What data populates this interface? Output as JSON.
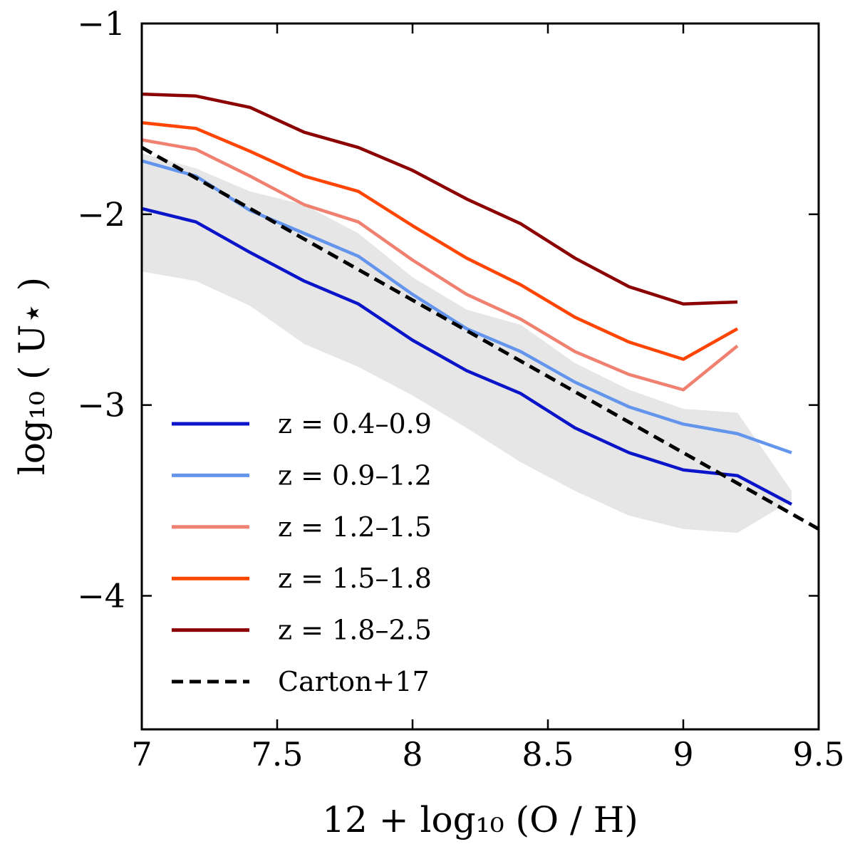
{
  "chart_data": {
    "type": "line",
    "xlabel": "12 + log₁₀ (O / H)",
    "ylabel": "log₁₀ ( U⋆ )",
    "xlim": [
      7,
      9.5
    ],
    "ylim": [
      -4.7,
      -1
    ],
    "xticks": [
      7,
      7.5,
      8,
      8.5,
      9,
      9.5
    ],
    "xtick_labels": [
      "7",
      "7.5",
      "8",
      "8.5",
      "9",
      "9.5"
    ],
    "yticks": [
      -1,
      -2,
      -3,
      -4
    ],
    "ytick_labels": [
      "−1",
      "−2",
      "−3",
      "−4"
    ],
    "legend_position": "lower-left",
    "shaded_band": {
      "color": "#e6e6e6",
      "x": [
        7.0,
        7.2,
        7.4,
        7.6,
        7.8,
        8.0,
        8.2,
        8.4,
        8.6,
        8.8,
        9.0,
        9.2,
        9.4
      ],
      "upper": [
        -1.68,
        -1.76,
        -1.88,
        -1.95,
        -2.1,
        -2.33,
        -2.5,
        -2.58,
        -2.78,
        -2.92,
        -3.02,
        -3.04,
        -3.45
      ],
      "lower": [
        -2.3,
        -2.35,
        -2.48,
        -2.68,
        -2.8,
        -2.95,
        -3.12,
        -3.3,
        -3.45,
        -3.58,
        -3.65,
        -3.67,
        -3.5
      ]
    },
    "series": [
      {
        "name": "z = 0.4–0.9",
        "color": "#0a14c8",
        "dashed": false,
        "x": [
          7.0,
          7.2,
          7.4,
          7.6,
          7.8,
          8.0,
          8.2,
          8.4,
          8.6,
          8.8,
          9.0,
          9.2,
          9.4
        ],
        "y": [
          -1.97,
          -2.04,
          -2.2,
          -2.35,
          -2.47,
          -2.66,
          -2.82,
          -2.94,
          -3.12,
          -3.25,
          -3.34,
          -3.37,
          -3.52
        ]
      },
      {
        "name": "z = 0.9–1.2",
        "color": "#6495ed",
        "dashed": false,
        "x": [
          7.0,
          7.2,
          7.4,
          7.6,
          7.8,
          8.0,
          8.2,
          8.4,
          8.6,
          8.8,
          9.0,
          9.2,
          9.4
        ],
        "y": [
          -1.72,
          -1.8,
          -1.98,
          -2.1,
          -2.22,
          -2.42,
          -2.6,
          -2.72,
          -2.88,
          -3.01,
          -3.1,
          -3.15,
          -3.25
        ]
      },
      {
        "name": "z = 1.2–1.5",
        "color": "#f08070",
        "dashed": false,
        "x": [
          7.0,
          7.2,
          7.4,
          7.6,
          7.8,
          8.0,
          8.2,
          8.4,
          8.6,
          8.8,
          9.0,
          9.2
        ],
        "y": [
          -1.61,
          -1.66,
          -1.8,
          -1.95,
          -2.04,
          -2.24,
          -2.42,
          -2.55,
          -2.72,
          -2.84,
          -2.92,
          -2.69
        ]
      },
      {
        "name": "z = 1.5–1.8",
        "color": "#ff4500",
        "dashed": false,
        "x": [
          7.0,
          7.2,
          7.4,
          7.6,
          7.8,
          8.0,
          8.2,
          8.4,
          8.6,
          8.8,
          9.0,
          9.2
        ],
        "y": [
          -1.52,
          -1.55,
          -1.67,
          -1.8,
          -1.88,
          -2.06,
          -2.23,
          -2.37,
          -2.54,
          -2.67,
          -2.76,
          -2.6
        ]
      },
      {
        "name": "z = 1.8–2.5",
        "color": "#8b0000",
        "dashed": false,
        "x": [
          7.0,
          7.2,
          7.4,
          7.6,
          7.8,
          8.0,
          8.2,
          8.4,
          8.6,
          8.8,
          9.0,
          9.2
        ],
        "y": [
          -1.37,
          -1.38,
          -1.44,
          -1.57,
          -1.65,
          -1.77,
          -1.92,
          -2.05,
          -2.23,
          -2.38,
          -2.47,
          -2.46
        ]
      },
      {
        "name": "Carton+17",
        "color": "#000000",
        "dashed": true,
        "x": [
          7.0,
          9.5
        ],
        "y": [
          -1.65,
          -3.65
        ]
      }
    ]
  }
}
